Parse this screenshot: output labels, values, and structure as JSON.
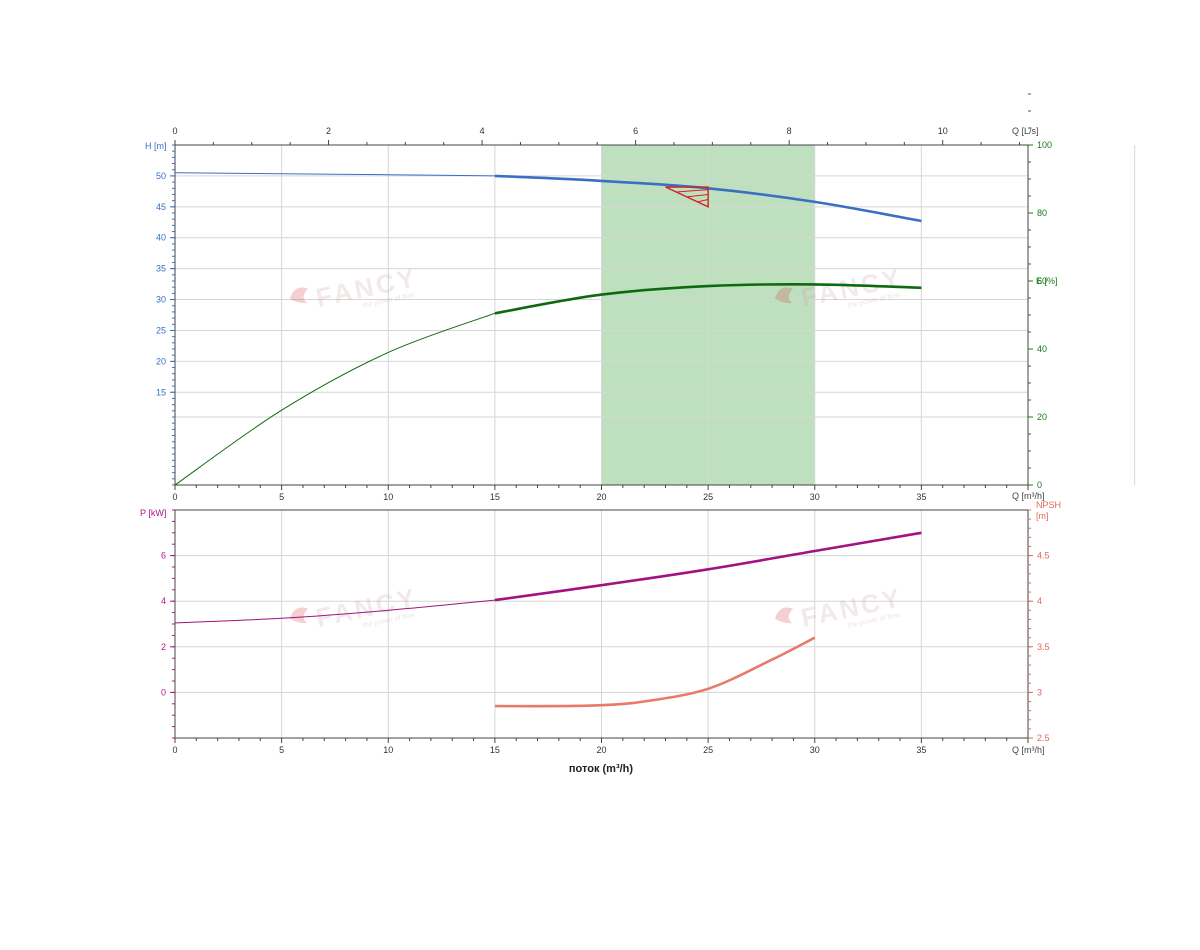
{
  "chart_data": [
    {
      "type": "line",
      "panel": "head-efficiency",
      "x_label": "Q [m³/h]",
      "x_ticks": [
        0,
        5,
        10,
        15,
        20,
        25,
        30,
        35
      ],
      "xlim": [
        0,
        40
      ],
      "top_axis": {
        "label": "Q [L/s]",
        "ticks": [
          0,
          2,
          4,
          6,
          8,
          10
        ],
        "units_per_x": 3.6
      },
      "left_axis": {
        "label": "H [m]",
        "ticks": [
          15,
          20,
          25,
          30,
          35,
          40,
          45,
          50
        ],
        "ylim": [
          0,
          55
        ],
        "color": "#3a6fc4"
      },
      "right_axis": {
        "label": "E [%]",
        "ticks": [
          0,
          20,
          40,
          60,
          80,
          100
        ],
        "ylim": [
          0,
          100
        ],
        "color": "#1a7a1a"
      },
      "operating_range": {
        "x": [
          20,
          30
        ],
        "color": "#9ccf9c"
      },
      "duty_point": {
        "x": [
          23,
          25
        ],
        "y": [
          48.2,
          45.0
        ],
        "color": "#d42020"
      },
      "series": [
        {
          "key": "head",
          "axis": "left",
          "color": "#3a6fc4",
          "thin": {
            "x": [
              0,
              5,
              10,
              15
            ],
            "y": [
              50.5,
              50.35,
              50.2,
              50.0
            ]
          },
          "thick": {
            "x": [
              15,
              20,
              25,
              30,
              35
            ],
            "y": [
              50.0,
              49.2,
              48.0,
              45.8,
              42.7
            ]
          }
        },
        {
          "key": "efficiency",
          "axis": "right",
          "color": "#0e6a0e",
          "thin": {
            "x": [
              0,
              5,
              10,
              15
            ],
            "y": [
              0,
              22,
              39,
              50.5
            ]
          },
          "thick": {
            "x": [
              15,
              20,
              25,
              30,
              35
            ],
            "y": [
              50.5,
              56,
              58.5,
              59,
              58
            ]
          }
        }
      ]
    },
    {
      "type": "line",
      "panel": "power-npsh",
      "x_label": "Q [m³/h]",
      "x_ticks": [
        0,
        5,
        10,
        15,
        20,
        25,
        30,
        35
      ],
      "xlim": [
        0,
        40
      ],
      "xtitle": "поток (m³/h)",
      "left_axis": {
        "label": "P [kW]",
        "ticks": [
          0,
          2,
          4,
          6
        ],
        "ylim": [
          -2,
          8
        ],
        "color": "#b0148c"
      },
      "right_axis": {
        "label_lines": [
          "NPSH",
          "[m]"
        ],
        "ticks": [
          "2.5",
          "3",
          "3.5",
          "4",
          "4.5"
        ],
        "tick_values": [
          2.5,
          3,
          3.5,
          4,
          4.5
        ],
        "ylim": [
          2.5,
          5.0
        ],
        "color": "#e06a5a"
      },
      "series": [
        {
          "key": "power",
          "axis": "left",
          "color": "#a3127f",
          "thin": {
            "x": [
              0,
              5,
              10,
              15
            ],
            "y": [
              3.05,
              3.25,
              3.6,
              4.05
            ]
          },
          "thick": {
            "x": [
              15,
              20,
              25,
              30,
              35
            ],
            "y": [
              4.05,
              4.7,
              5.4,
              6.2,
              7.0
            ]
          }
        },
        {
          "key": "npsh",
          "axis": "right",
          "color": "#e87a6a",
          "thick": {
            "x": [
              15,
              18,
              20,
              22,
              25,
              28,
              30
            ],
            "y": [
              2.85,
              2.85,
              2.86,
              2.9,
              3.04,
              3.36,
              3.6
            ]
          }
        }
      ]
    }
  ],
  "watermark": {
    "brand": "FANCY",
    "tagline": "the power of flow"
  }
}
